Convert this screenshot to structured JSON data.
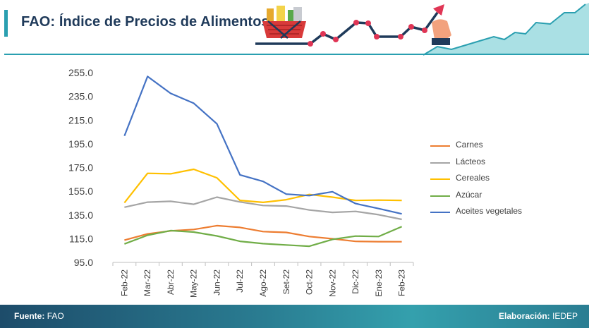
{
  "header": {
    "title": "FAO: Índice de Precios de Alimentos"
  },
  "footer": {
    "source_label": "Fuente:",
    "source_value": "FAO",
    "credit_label": "Elaboración:",
    "credit_value": "IEDEP"
  },
  "colors": {
    "accent": "#2a9fb0",
    "title": "#1f3a5a",
    "Carnes": "#ed7d31",
    "Lácteos": "#a5a5a5",
    "Cereales": "#ffc000",
    "Azúcar": "#70ad47",
    "Aceites vegetales": "#4472c4"
  },
  "chart_data": {
    "type": "line",
    "title": "",
    "xlabel": "",
    "ylabel": "",
    "ylim": [
      95.0,
      255.0
    ],
    "yticks": [
      "255.0",
      "235.0",
      "215.0",
      "195.0",
      "175.0",
      "155.0",
      "135.0",
      "115.0",
      "95.0"
    ],
    "categories": [
      "Feb-22",
      "Mar-22",
      "Abr-22",
      "May-22",
      "Jun-22",
      "Jul-22",
      "Ago-22",
      "Set-22",
      "Oct-22",
      "Nov-22",
      "Dic-22",
      "Ene-23",
      "Feb-23"
    ],
    "legend_position": "right",
    "series": [
      {
        "name": "Carnes",
        "values": [
          113.8,
          119.0,
          121.6,
          122.8,
          126.0,
          124.5,
          121.0,
          120.3,
          116.8,
          114.9,
          112.7,
          112.5,
          112.4
        ]
      },
      {
        "name": "Lácteos",
        "values": [
          141.5,
          145.8,
          146.5,
          144.0,
          150.0,
          146.0,
          143.0,
          142.5,
          139.2,
          137.2,
          138.0,
          135.2,
          131.3
        ]
      },
      {
        "name": "Cereales",
        "values": [
          145.3,
          170.1,
          169.7,
          173.5,
          166.3,
          147.3,
          145.6,
          147.9,
          152.3,
          150.0,
          147.3,
          147.5,
          147.3
        ]
      },
      {
        "name": "Azúcar",
        "values": [
          110.6,
          117.9,
          121.8,
          120.6,
          117.3,
          112.8,
          110.8,
          109.7,
          108.6,
          114.4,
          117.2,
          116.8,
          125.2
        ]
      },
      {
        "name": "Aceites vegetales",
        "values": [
          201.7,
          251.8,
          237.5,
          229.2,
          211.8,
          168.8,
          163.3,
          152.6,
          151.3,
          154.6,
          144.6,
          140.4,
          135.9
        ]
      }
    ]
  }
}
